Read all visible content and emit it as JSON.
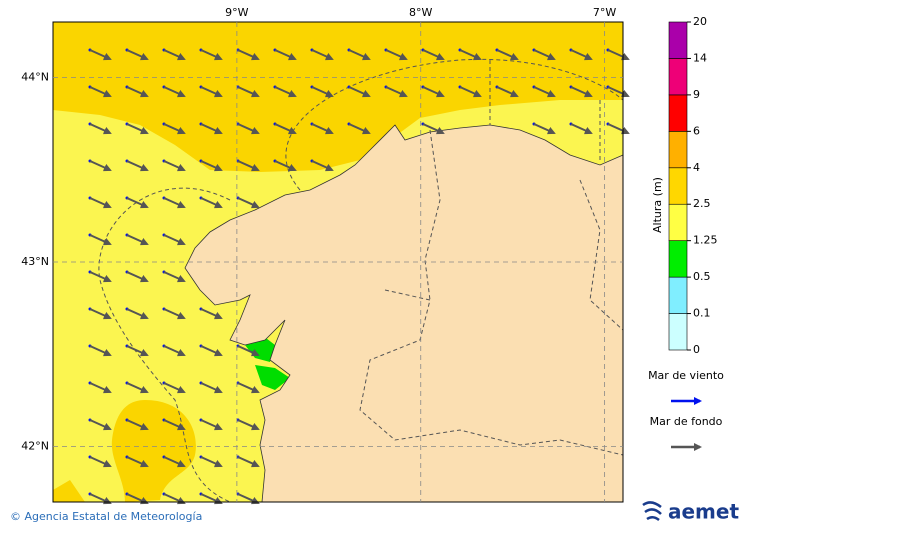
{
  "map": {
    "xlim": [
      -10,
      -6.9
    ],
    "ylim": [
      41.7,
      44.3
    ],
    "xticks": [
      {
        "value": -9,
        "label": "9°W"
      },
      {
        "value": -8,
        "label": "8°W"
      },
      {
        "value": -7,
        "label": "7°W"
      }
    ],
    "yticks": [
      {
        "value": 44,
        "label": "44°N"
      },
      {
        "value": 43,
        "label": "43°N"
      },
      {
        "value": 42,
        "label": "42°N"
      }
    ]
  },
  "colorbar": {
    "label": "Altura (m)",
    "ticks": [
      0,
      0.1,
      0.5,
      1.25,
      2.5,
      4,
      6,
      9,
      14,
      20
    ],
    "colors": [
      "#ccffff",
      "#80eeff",
      "#00ee00",
      "#ffff44",
      "#ffd700",
      "#ffb000",
      "#ff0000",
      "#ee0077",
      "#aa00aa"
    ]
  },
  "legend": [
    {
      "label": "Mar de viento",
      "color": "#0011ee"
    },
    {
      "label": "Mar de fondo",
      "color": "#555555"
    }
  ],
  "footer": "© Agencia Estatal de Meteorología",
  "logo": "aemet"
}
